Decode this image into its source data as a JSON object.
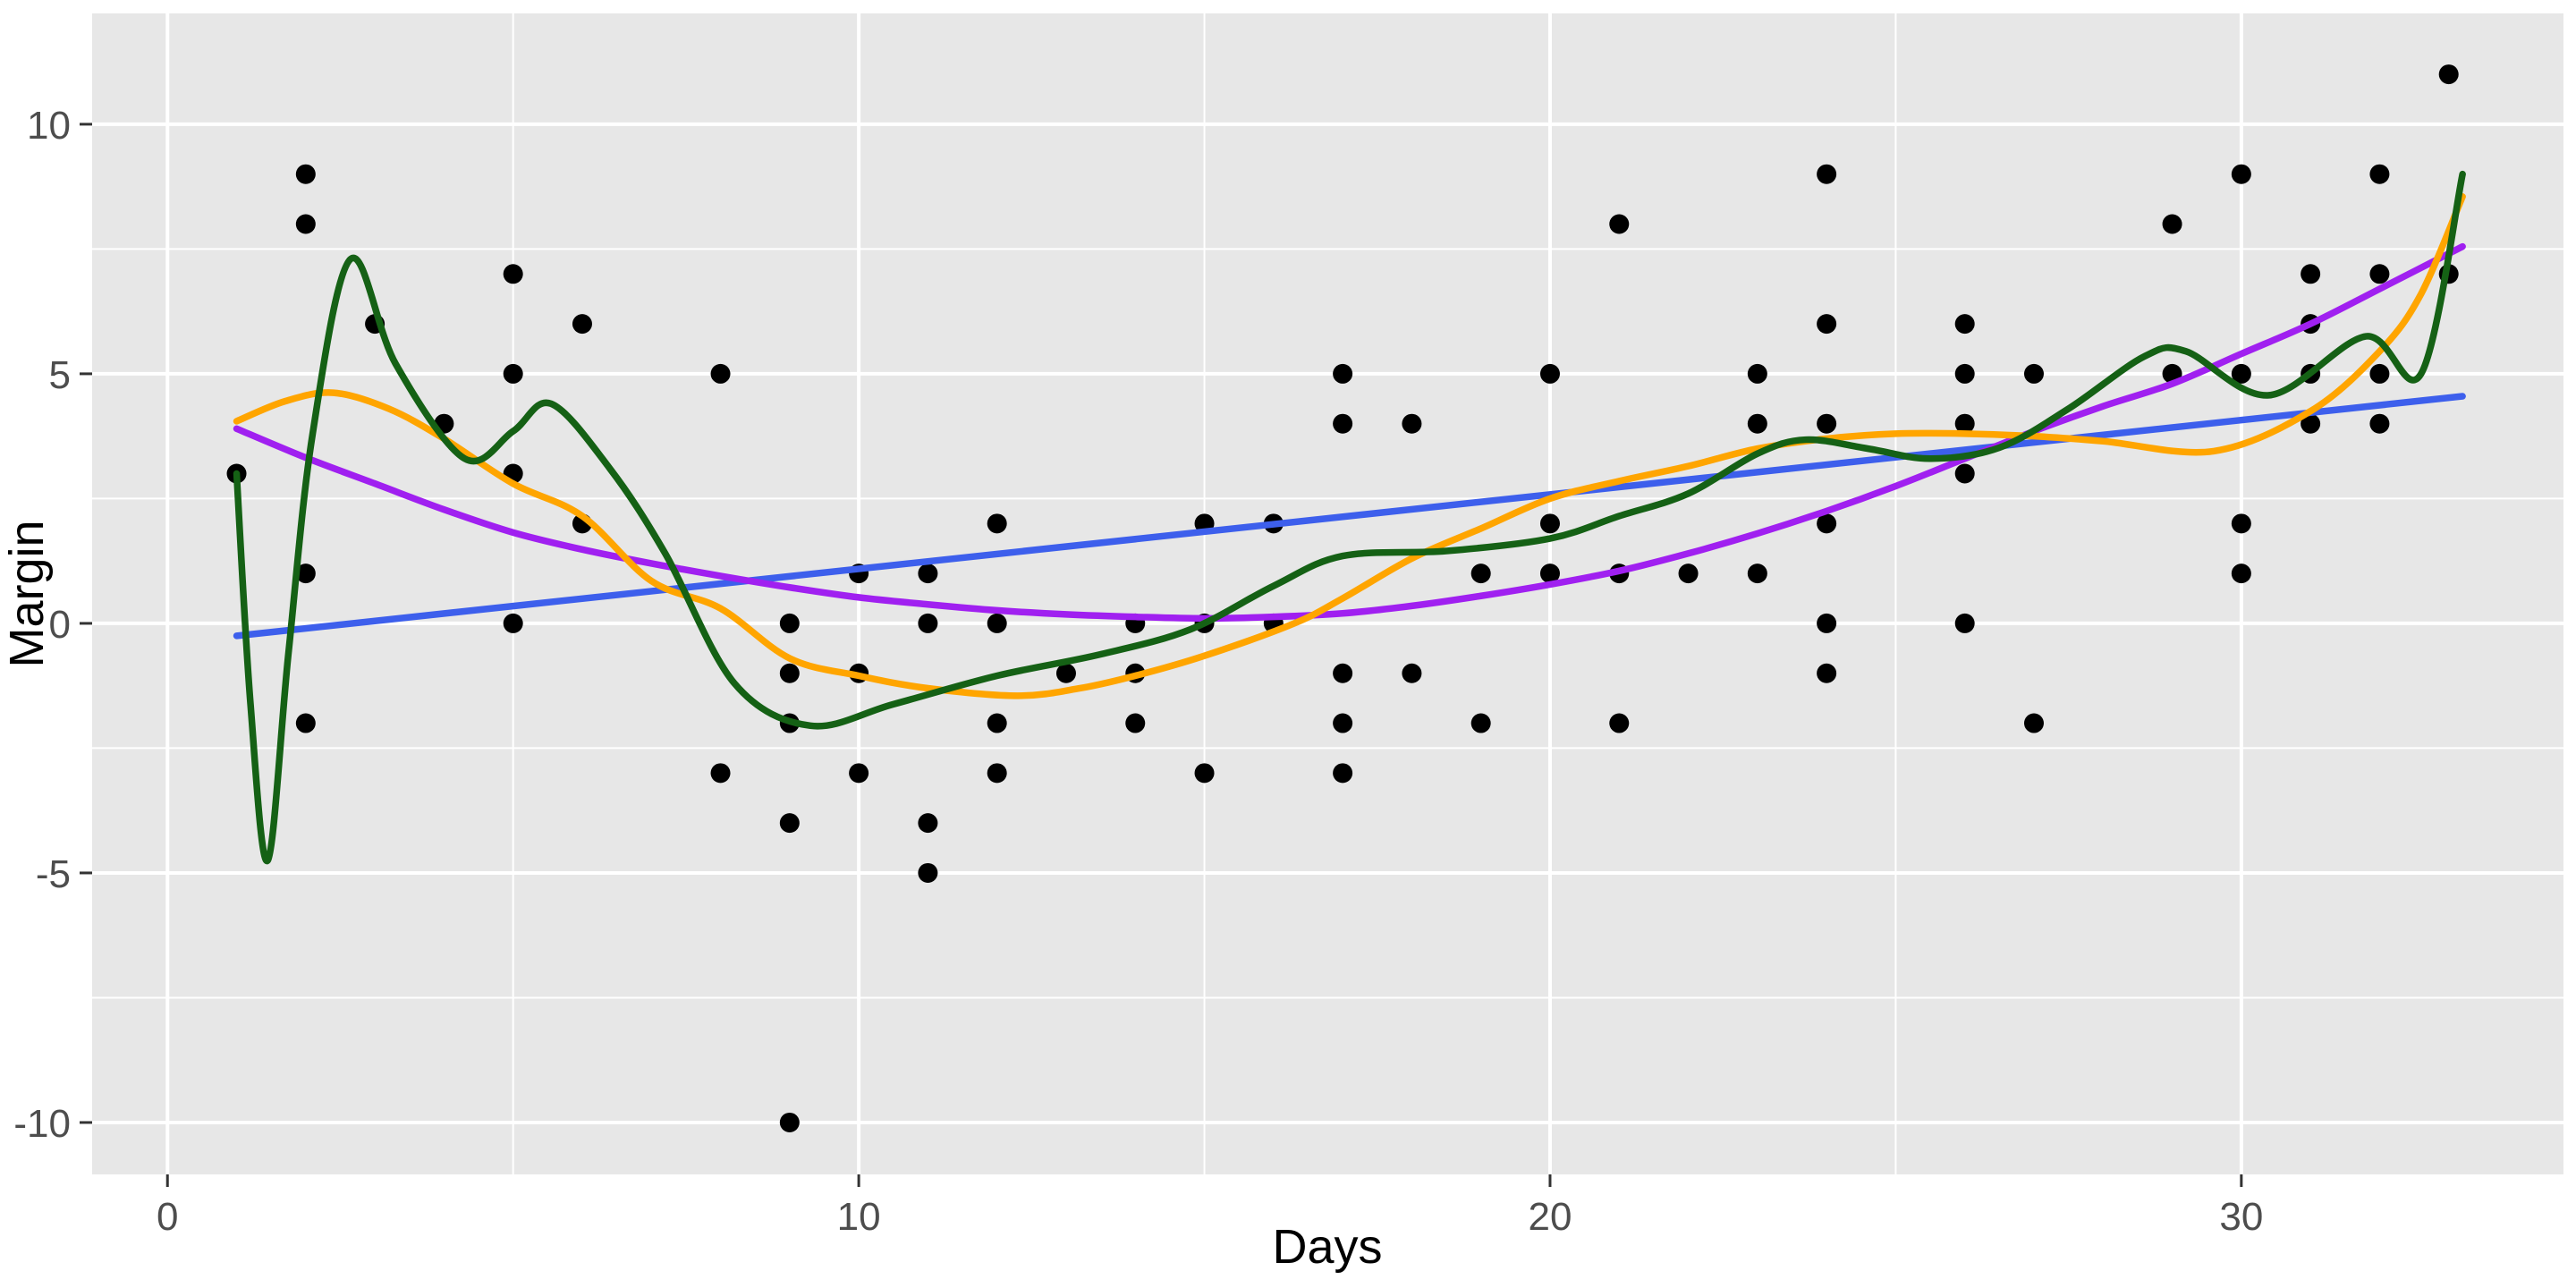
{
  "figure": {
    "background_color": "#FFFFFF",
    "panel_background_color": "#E7E7E7",
    "grid_color": "#FFFFFF",
    "tick_mark_color": "#333333",
    "tick_label_color": "#4D4D4D",
    "axis_title_color": "#000000",
    "point_color": "#000000"
  },
  "chart_data": {
    "type": "scatter",
    "title": "",
    "xlabel": "Days",
    "ylabel": "Margin",
    "x_domain": [
      -1.09,
      34.66
    ],
    "y_domain": [
      -11.04,
      12.22
    ],
    "grid": {
      "major_x": [
        0,
        10,
        20,
        30
      ],
      "minor_x": [
        5,
        15,
        25
      ],
      "major_y": [
        10,
        5,
        0,
        -5,
        -10
      ],
      "minor_y": [
        7.5,
        2.5,
        -2.5,
        -7.5
      ]
    },
    "x_ticks": [
      {
        "value": 0,
        "label": "0"
      },
      {
        "value": 10,
        "label": "10"
      },
      {
        "value": 20,
        "label": "20"
      },
      {
        "value": 30,
        "label": "30"
      }
    ],
    "y_ticks": [
      {
        "value": 10,
        "label": "10"
      },
      {
        "value": 5,
        "label": "5"
      },
      {
        "value": 0,
        "label": "0"
      },
      {
        "value": -5,
        "label": "-5"
      },
      {
        "value": -10,
        "label": "-10"
      }
    ],
    "points": [
      [
        1,
        3
      ],
      [
        2,
        9
      ],
      [
        2,
        8
      ],
      [
        2,
        1
      ],
      [
        2,
        -2
      ],
      [
        3,
        6
      ],
      [
        4,
        4
      ],
      [
        5,
        7
      ],
      [
        5,
        5
      ],
      [
        5,
        3
      ],
      [
        5,
        0
      ],
      [
        6,
        6
      ],
      [
        6,
        2
      ],
      [
        8,
        5
      ],
      [
        8,
        -3
      ],
      [
        9,
        0
      ],
      [
        9,
        -1
      ],
      [
        9,
        -2
      ],
      [
        9,
        -4
      ],
      [
        9,
        -10
      ],
      [
        10,
        1
      ],
      [
        10,
        -1
      ],
      [
        10,
        -3
      ],
      [
        11,
        1
      ],
      [
        11,
        0
      ],
      [
        11,
        -4
      ],
      [
        11,
        -5
      ],
      [
        12,
        2
      ],
      [
        12,
        0
      ],
      [
        12,
        -2
      ],
      [
        12,
        -3
      ],
      [
        13,
        -1
      ],
      [
        14,
        0
      ],
      [
        14,
        -1
      ],
      [
        14,
        -2
      ],
      [
        15,
        2
      ],
      [
        15,
        0
      ],
      [
        15,
        -3
      ],
      [
        16,
        2
      ],
      [
        16,
        0
      ],
      [
        17,
        5
      ],
      [
        17,
        4
      ],
      [
        17,
        -1
      ],
      [
        17,
        -2
      ],
      [
        17,
        -3
      ],
      [
        18,
        4
      ],
      [
        18,
        -1
      ],
      [
        19,
        1
      ],
      [
        19,
        -2
      ],
      [
        20,
        5
      ],
      [
        20,
        2
      ],
      [
        20,
        1
      ],
      [
        21,
        8
      ],
      [
        21,
        1
      ],
      [
        21,
        -2
      ],
      [
        22,
        1
      ],
      [
        23,
        5
      ],
      [
        23,
        4
      ],
      [
        23,
        1
      ],
      [
        24,
        9
      ],
      [
        24,
        6
      ],
      [
        24,
        4
      ],
      [
        24,
        2
      ],
      [
        24,
        0
      ],
      [
        24,
        -1
      ],
      [
        26,
        6
      ],
      [
        26,
        5
      ],
      [
        26,
        4
      ],
      [
        26,
        3
      ],
      [
        26,
        0
      ],
      [
        27,
        5
      ],
      [
        27,
        -2
      ],
      [
        29,
        8
      ],
      [
        29,
        5
      ],
      [
        30,
        9
      ],
      [
        30,
        5
      ],
      [
        30,
        2
      ],
      [
        30,
        1
      ],
      [
        31,
        7
      ],
      [
        31,
        6
      ],
      [
        31,
        5
      ],
      [
        31,
        4
      ],
      [
        32,
        9
      ],
      [
        32,
        7
      ],
      [
        32,
        5
      ],
      [
        32,
        4
      ],
      [
        33,
        11
      ],
      [
        33,
        7
      ]
    ],
    "point_radius": 11,
    "smoothers": [
      {
        "name": "linear-fit",
        "color": "#3D5FEC",
        "width": 7.5,
        "points": [
          [
            1,
            -0.25
          ],
          [
            33.2,
            4.55
          ]
        ]
      },
      {
        "name": "quadratic-fit",
        "color": "#A020F0",
        "width": 7.5,
        "points": [
          [
            1,
            3.9
          ],
          [
            2,
            3.32
          ],
          [
            3,
            2.8
          ],
          [
            4,
            2.28
          ],
          [
            5,
            1.82
          ],
          [
            6,
            1.48
          ],
          [
            7,
            1.2
          ],
          [
            8,
            0.95
          ],
          [
            9,
            0.72
          ],
          [
            10,
            0.52
          ],
          [
            11,
            0.38
          ],
          [
            12,
            0.26
          ],
          [
            13,
            0.18
          ],
          [
            14,
            0.13
          ],
          [
            15,
            0.1
          ],
          [
            16,
            0.13
          ],
          [
            17,
            0.2
          ],
          [
            18,
            0.35
          ],
          [
            19,
            0.55
          ],
          [
            20,
            0.78
          ],
          [
            21,
            1.05
          ],
          [
            22,
            1.4
          ],
          [
            23,
            1.8
          ],
          [
            24,
            2.25
          ],
          [
            25,
            2.75
          ],
          [
            26,
            3.3
          ],
          [
            27,
            3.85
          ],
          [
            28,
            4.35
          ],
          [
            29,
            4.8
          ],
          [
            30,
            5.4
          ],
          [
            31,
            6.0
          ],
          [
            32,
            6.7
          ],
          [
            33.2,
            7.55
          ]
        ]
      },
      {
        "name": "loess-wide-fit",
        "color": "#FFA500",
        "width": 7.5,
        "points": [
          [
            1,
            4.05
          ],
          [
            1.7,
            4.45
          ],
          [
            2.4,
            4.62
          ],
          [
            3.2,
            4.3
          ],
          [
            4,
            3.7
          ],
          [
            5,
            2.8
          ],
          [
            6,
            2.15
          ],
          [
            7,
            0.85
          ],
          [
            8,
            0.3
          ],
          [
            9,
            -0.7
          ],
          [
            10,
            -1.05
          ],
          [
            11,
            -1.3
          ],
          [
            12.3,
            -1.45
          ],
          [
            13.2,
            -1.3
          ],
          [
            14,
            -1.05
          ],
          [
            15,
            -0.65
          ],
          [
            16.3,
            0
          ],
          [
            17,
            0.5
          ],
          [
            18,
            1.3
          ],
          [
            19,
            1.9
          ],
          [
            20,
            2.5
          ],
          [
            21,
            2.85
          ],
          [
            22,
            3.15
          ],
          [
            23,
            3.5
          ],
          [
            24,
            3.7
          ],
          [
            25,
            3.8
          ],
          [
            26,
            3.8
          ],
          [
            27,
            3.75
          ],
          [
            28,
            3.65
          ],
          [
            29.6,
            3.45
          ],
          [
            31,
            4.25
          ],
          [
            32,
            5.45
          ],
          [
            32.6,
            6.6
          ],
          [
            33.2,
            8.55
          ]
        ]
      },
      {
        "name": "loess-narrow-fit",
        "color": "#156115",
        "width": 7.5,
        "points": [
          [
            1,
            3
          ],
          [
            1.2,
            -1.6
          ],
          [
            1.45,
            -4.75
          ],
          [
            1.75,
            -0.6
          ],
          [
            2.1,
            3.8
          ],
          [
            2.65,
            7.3
          ],
          [
            3.3,
            5.2
          ],
          [
            4.3,
            3.3
          ],
          [
            5,
            3.85
          ],
          [
            5.55,
            4.4
          ],
          [
            6.4,
            3.1
          ],
          [
            7.2,
            1.4
          ],
          [
            8.2,
            -1.2
          ],
          [
            9.3,
            -2.05
          ],
          [
            10.5,
            -1.62
          ],
          [
            12,
            -1.05
          ],
          [
            13.5,
            -0.62
          ],
          [
            14.8,
            -0.12
          ],
          [
            16,
            0.75
          ],
          [
            17,
            1.35
          ],
          [
            18.5,
            1.45
          ],
          [
            20,
            1.7
          ],
          [
            21,
            2.15
          ],
          [
            22,
            2.6
          ],
          [
            23,
            3.4
          ],
          [
            23.7,
            3.68
          ],
          [
            24.6,
            3.5
          ],
          [
            25.5,
            3.3
          ],
          [
            26.5,
            3.52
          ],
          [
            27.5,
            4.3
          ],
          [
            28.6,
            5.35
          ],
          [
            29.2,
            5.45
          ],
          [
            30.4,
            4.57
          ],
          [
            31.8,
            5.75
          ],
          [
            32.6,
            5.0
          ],
          [
            33.2,
            9.0
          ]
        ]
      }
    ]
  }
}
